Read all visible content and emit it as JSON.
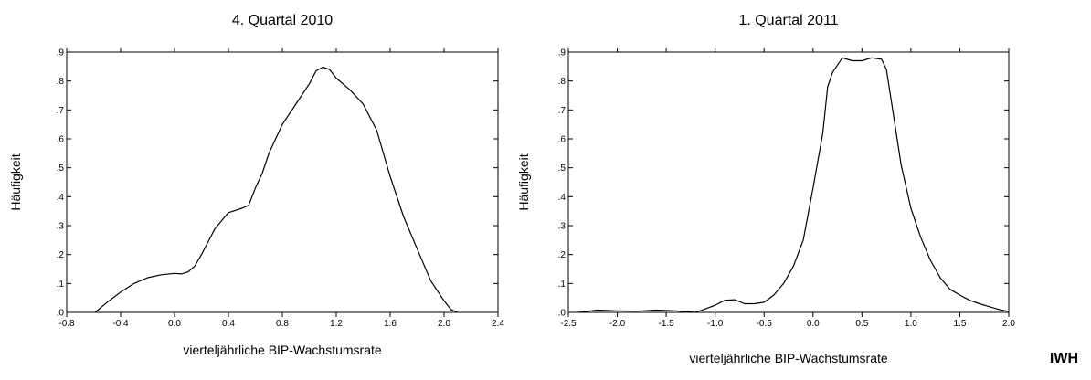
{
  "brand": "IWH",
  "chart_data": [
    {
      "type": "line",
      "title": "4. Quartal 2010",
      "xlabel": "vierteljährliche BIP-Wachstumsrate",
      "ylabel": "Häufigkeit",
      "xlim": [
        -0.8,
        2.4
      ],
      "ylim": [
        0,
        0.9
      ],
      "xticks": [
        -0.8,
        -0.4,
        0.0,
        0.4,
        0.8,
        1.2,
        1.6,
        2.0,
        2.4
      ],
      "xtick_labels": [
        "-0.8",
        "-0.4",
        "0.0",
        "0.4",
        "0.8",
        "1.2",
        "1.6",
        "2.0",
        "2.4"
      ],
      "yticks": [
        0,
        0.1,
        0.2,
        0.3,
        0.4,
        0.5,
        0.6,
        0.7,
        0.8,
        0.9
      ],
      "ytick_labels": [
        ".0",
        ".1",
        ".2",
        ".3",
        ".4",
        ".5",
        ".6",
        ".7",
        ".8",
        ".9"
      ],
      "grid": false,
      "series": [
        {
          "x": [
            -0.59,
            -0.5,
            -0.4,
            -0.3,
            -0.2,
            -0.1,
            0.0,
            0.05,
            0.1,
            0.15,
            0.2,
            0.3,
            0.4,
            0.5,
            0.55,
            0.6,
            0.65,
            0.7,
            0.8,
            0.9,
            1.0,
            1.05,
            1.1,
            1.15,
            1.2,
            1.3,
            1.4,
            1.5,
            1.6,
            1.7,
            1.8,
            1.9,
            2.0,
            2.05,
            2.1
          ],
          "y": [
            0.0,
            0.035,
            0.07,
            0.1,
            0.12,
            0.13,
            0.135,
            0.133,
            0.14,
            0.16,
            0.2,
            0.29,
            0.345,
            0.36,
            0.37,
            0.43,
            0.48,
            0.55,
            0.65,
            0.72,
            0.79,
            0.835,
            0.848,
            0.84,
            0.81,
            0.77,
            0.72,
            0.63,
            0.47,
            0.33,
            0.22,
            0.11,
            0.04,
            0.01,
            0.0
          ]
        }
      ]
    },
    {
      "type": "line",
      "title": "1. Quartal 2011",
      "xlabel": "vierteljährliche BIP-Wachstumsrate",
      "ylabel": "Häufigkeit",
      "xlim": [
        -2.5,
        2.0
      ],
      "ylim": [
        0,
        0.9
      ],
      "xticks": [
        -2.5,
        -2.0,
        -1.5,
        -1.0,
        -0.5,
        0.0,
        0.5,
        1.0,
        1.5,
        2.0
      ],
      "xtick_labels": [
        "-2.5",
        "-2.0",
        "-1.5",
        "-1.0",
        "-0.5",
        "0.0",
        "0.5",
        "1.0",
        "1.5",
        "2.0"
      ],
      "yticks": [
        0,
        0.1,
        0.2,
        0.3,
        0.4,
        0.5,
        0.6,
        0.7,
        0.8,
        0.9
      ],
      "ytick_labels": [
        ".0",
        ".1",
        ".2",
        ".3",
        ".4",
        ".5",
        ".6",
        ".7",
        ".8",
        ".9"
      ],
      "grid": false,
      "series": [
        {
          "x": [
            -2.4,
            -2.2,
            -2.0,
            -1.8,
            -1.6,
            -1.4,
            -1.2,
            -1.1,
            -1.0,
            -0.9,
            -0.8,
            -0.7,
            -0.6,
            -0.5,
            -0.4,
            -0.3,
            -0.2,
            -0.1,
            0.0,
            0.1,
            0.15,
            0.2,
            0.3,
            0.4,
            0.5,
            0.6,
            0.7,
            0.75,
            0.8,
            0.9,
            1.0,
            1.1,
            1.2,
            1.3,
            1.4,
            1.5,
            1.6,
            1.7,
            1.8,
            1.9,
            2.0
          ],
          "y": [
            0.0,
            0.008,
            0.005,
            0.004,
            0.008,
            0.005,
            0.0,
            0.012,
            0.025,
            0.042,
            0.044,
            0.03,
            0.03,
            0.035,
            0.06,
            0.1,
            0.16,
            0.25,
            0.43,
            0.62,
            0.78,
            0.83,
            0.88,
            0.87,
            0.87,
            0.88,
            0.875,
            0.84,
            0.73,
            0.51,
            0.36,
            0.26,
            0.18,
            0.12,
            0.08,
            0.06,
            0.042,
            0.03,
            0.02,
            0.01,
            0.003
          ]
        }
      ]
    }
  ]
}
